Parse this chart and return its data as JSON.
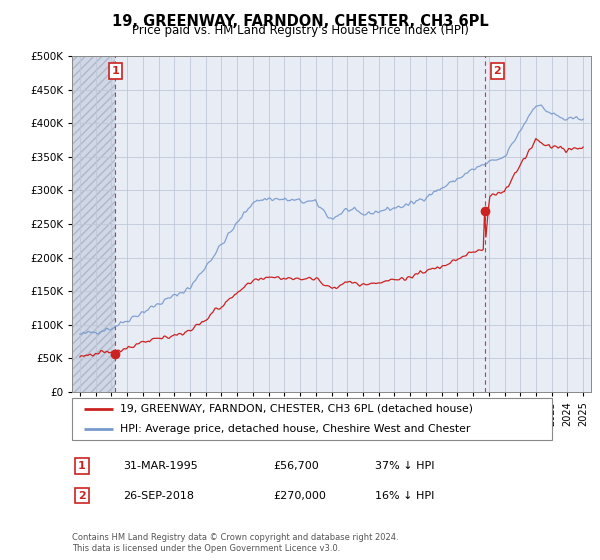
{
  "title": "19, GREENWAY, FARNDON, CHESTER, CH3 6PL",
  "subtitle": "Price paid vs. HM Land Registry's House Price Index (HPI)",
  "ylim": [
    0,
    500000
  ],
  "sale1_x": 1995.25,
  "sale1_price": 56700,
  "sale2_x": 2018.75,
  "sale2_price": 270000,
  "legend_red": "19, GREENWAY, FARNDON, CHESTER, CH3 6PL (detached house)",
  "legend_blue": "HPI: Average price, detached house, Cheshire West and Chester",
  "footer": "Contains HM Land Registry data © Crown copyright and database right 2024.\nThis data is licensed under the Open Government Licence v3.0.",
  "red_color": "#cc2222",
  "blue_color": "#7799cc",
  "bg_color": "#e8ecf5",
  "grid_color": "#c0c8d8",
  "hatch_bg": "#d0d8e8",
  "xlim_start": 1992.5,
  "xlim_end": 2025.5,
  "table_row1_num": "1",
  "table_row1_date": "31-MAR-1995",
  "table_row1_price": "£56,700",
  "table_row1_hpi": "37% ↓ HPI",
  "table_row2_num": "2",
  "table_row2_date": "26-SEP-2018",
  "table_row2_price": "£270,000",
  "table_row2_hpi": "16% ↓ HPI"
}
